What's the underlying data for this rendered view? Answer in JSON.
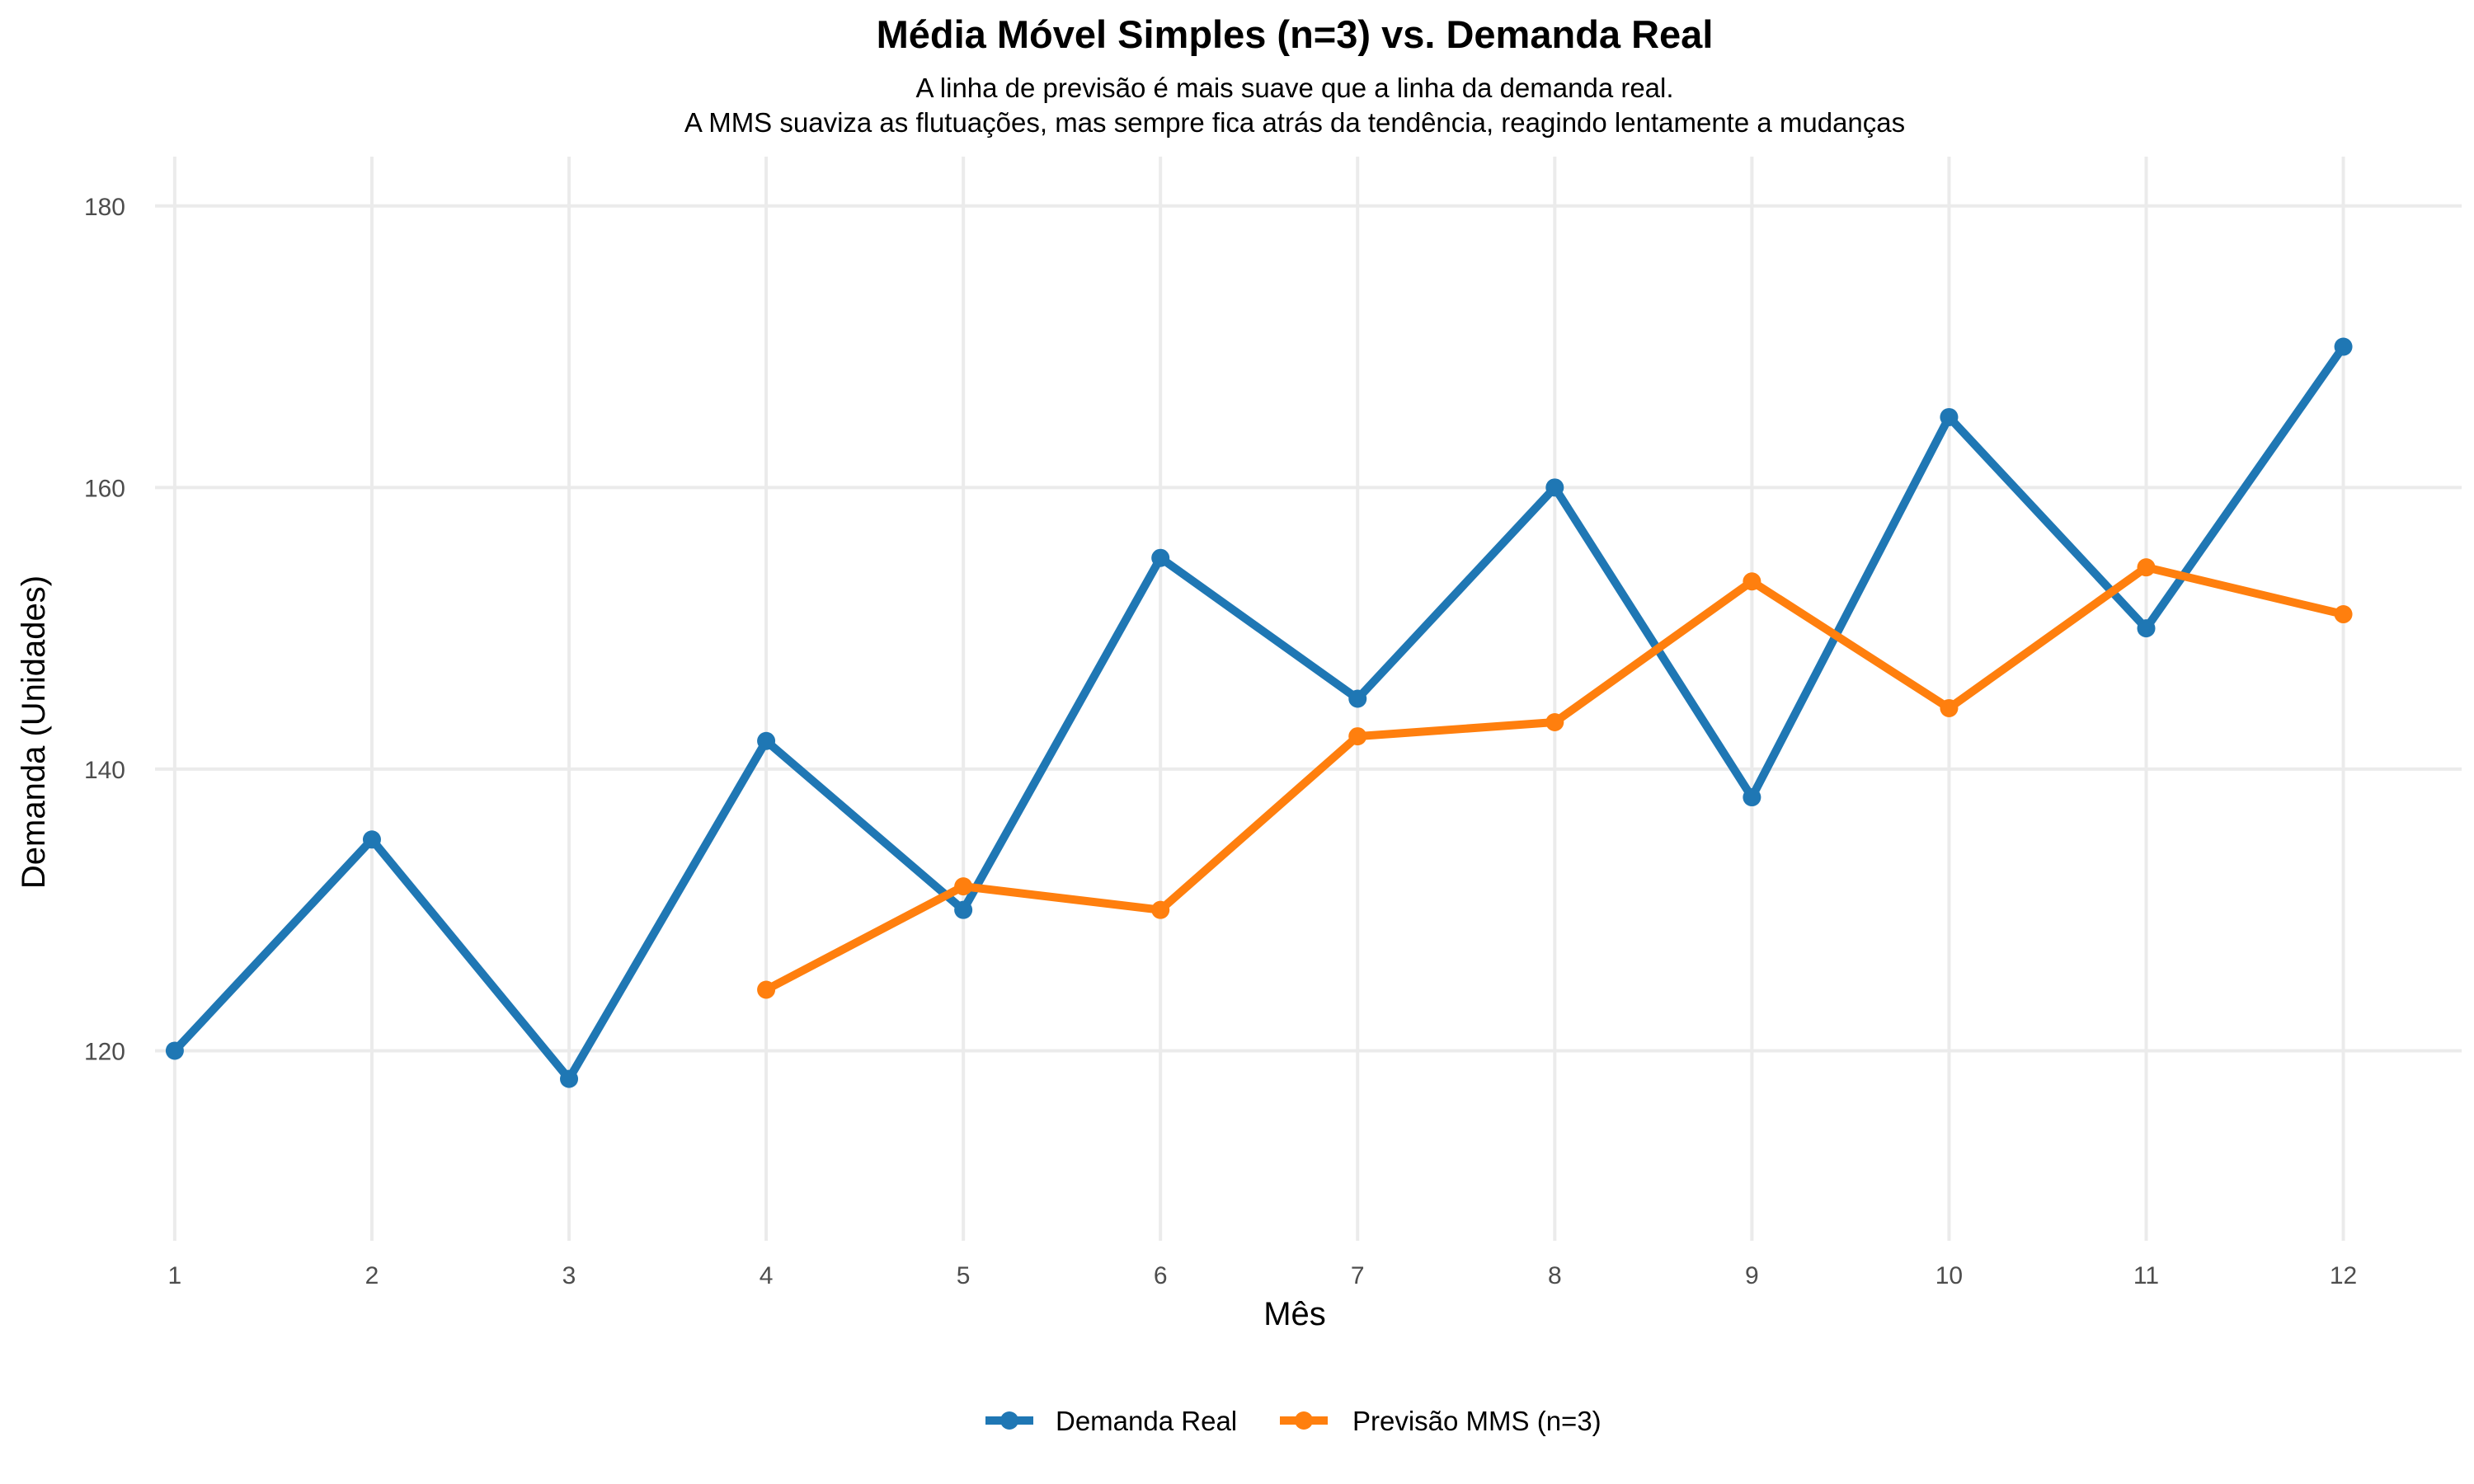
{
  "chart_data": {
    "type": "line",
    "title": "Média Móvel Simples (n=3) vs. Demanda Real",
    "subtitle_lines": [
      "A linha de previsão é mais suave que a linha da demanda real.",
      "A MMS suaviza as flutuações, mas sempre fica atrás da tendência, reagindo lentamente a mudanças"
    ],
    "xlabel": "Mês",
    "ylabel": "Demanda (Unidades)",
    "x": [
      1,
      2,
      3,
      4,
      5,
      6,
      7,
      8,
      9,
      10,
      11,
      12
    ],
    "xlim": [
      0.9,
      12.6
    ],
    "ylim": [
      106.5,
      183.5
    ],
    "yticks": [
      120,
      140,
      160,
      180
    ],
    "grid": true,
    "legend_position": "bottom",
    "series": [
      {
        "name": "Demanda Real",
        "color": "#1f77b4",
        "values": [
          120,
          135,
          118,
          142,
          130,
          155,
          145,
          160,
          138,
          165,
          150,
          170
        ]
      },
      {
        "name": "Previsão MMS (n=3)",
        "color": "#ff7f0e",
        "values": [
          null,
          null,
          null,
          124.33,
          131.67,
          130,
          142.33,
          143.33,
          153.33,
          144.33,
          154.33,
          151
        ]
      }
    ]
  }
}
